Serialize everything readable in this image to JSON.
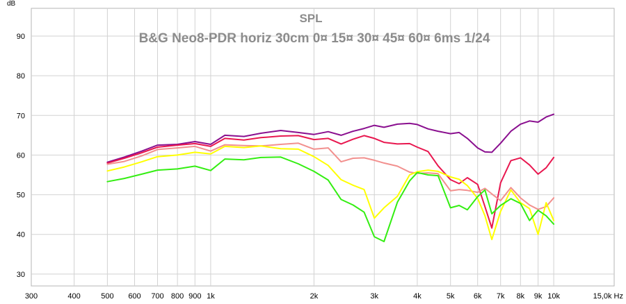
{
  "chart_data": {
    "type": "line",
    "title": "SPL",
    "subtitle": "B&G Neo8-PDR horiz 30cm 0¤ 15¤ 30¤ 45¤ 60¤ 6ms 1/24",
    "xlabel": "Hz",
    "ylabel": "dB",
    "x_scale": "log",
    "xlim": [
      300,
      15000
    ],
    "ylim": [
      27,
      97
    ],
    "grid": true,
    "x_ticks": [
      {
        "value": 300,
        "label": "300"
      },
      {
        "value": 400,
        "label": "400"
      },
      {
        "value": 500,
        "label": "500"
      },
      {
        "value": 600,
        "label": "600"
      },
      {
        "value": 700,
        "label": "700"
      },
      {
        "value": 800,
        "label": "800"
      },
      {
        "value": 900,
        "label": "900"
      },
      {
        "value": 1000,
        "label": "1k"
      },
      {
        "value": 2000,
        "label": "2k"
      },
      {
        "value": 3000,
        "label": "3k"
      },
      {
        "value": 4000,
        "label": "4k"
      },
      {
        "value": 5000,
        "label": "5k"
      },
      {
        "value": 6000,
        "label": "6k"
      },
      {
        "value": 7000,
        "label": "7k"
      },
      {
        "value": 8000,
        "label": "8k"
      },
      {
        "value": 9000,
        "label": "9k"
      },
      {
        "value": 10000,
        "label": "10k"
      },
      {
        "value": 15000,
        "label": "15,0k Hz"
      }
    ],
    "x_minor_gridlines": [
      5000,
      6000,
      7000,
      8000,
      9000,
      10000
    ],
    "y_ticks": [
      30,
      40,
      50,
      60,
      70,
      80,
      90
    ],
    "x": [
      500,
      560,
      630,
      700,
      800,
      900,
      1000,
      1100,
      1250,
      1400,
      1600,
      1800,
      2000,
      2200,
      2400,
      2600,
      2800,
      3000,
      3200,
      3500,
      3800,
      4000,
      4300,
      4600,
      5000,
      5300,
      5600,
      6000,
      6300,
      6600,
      7000,
      7500,
      8000,
      8500,
      9000,
      9500,
      10000
    ],
    "series": [
      {
        "color": "#8a0f8f",
        "values": [
          58.2,
          59.5,
          61.0,
          62.5,
          62.7,
          63.4,
          62.7,
          65.0,
          64.7,
          65.5,
          66.2,
          65.7,
          65.2,
          65.9,
          65.0,
          66.0,
          66.7,
          67.5,
          67.0,
          67.8,
          68.0,
          67.7,
          66.6,
          66.0,
          65.4,
          65.7,
          64.2,
          61.8,
          60.8,
          60.7,
          63.0,
          66.0,
          67.8,
          68.6,
          68.3,
          69.6,
          70.3
        ]
      },
      {
        "color": "#e8174f",
        "values": [
          58.0,
          59.2,
          60.6,
          62.0,
          62.5,
          62.9,
          62.2,
          64.2,
          63.8,
          64.4,
          64.8,
          64.9,
          63.9,
          64.2,
          62.8,
          64.0,
          64.9,
          64.2,
          63.2,
          62.8,
          62.9,
          62.0,
          60.9,
          57.3,
          53.8,
          52.8,
          54.3,
          52.6,
          47.0,
          41.6,
          53.0,
          58.6,
          59.3,
          57.5,
          55.2,
          56.8,
          59.4
        ]
      },
      {
        "color": "#f2908e",
        "values": [
          57.7,
          58.4,
          59.8,
          61.4,
          61.8,
          62.2,
          61.0,
          62.6,
          62.4,
          62.3,
          62.7,
          63.0,
          61.5,
          61.8,
          58.3,
          59.2,
          59.3,
          58.7,
          58.0,
          57.2,
          55.7,
          55.4,
          55.5,
          55.3,
          51.0,
          51.3,
          51.1,
          50.6,
          51.6,
          50.2,
          48.5,
          51.8,
          49.2,
          47.4,
          46.3,
          47.0,
          49.2
        ]
      },
      {
        "color": "#ffff00",
        "values": [
          56.0,
          57.0,
          58.3,
          59.6,
          60.0,
          60.7,
          60.3,
          62.2,
          61.9,
          62.3,
          61.6,
          61.5,
          59.6,
          57.4,
          53.8,
          52.4,
          51.3,
          44.1,
          46.7,
          49.6,
          55.0,
          55.8,
          56.2,
          55.9,
          54.5,
          53.9,
          52.3,
          49.1,
          44.7,
          38.7,
          45.8,
          51.2,
          48.0,
          46.5,
          40.0,
          48.0,
          43.5
        ]
      },
      {
        "color": "#33ee11",
        "values": [
          53.3,
          54.1,
          55.2,
          56.2,
          56.5,
          57.2,
          56.1,
          59.0,
          58.8,
          59.4,
          59.5,
          57.8,
          55.9,
          53.7,
          48.8,
          47.4,
          45.6,
          39.4,
          38.2,
          48.1,
          53.5,
          55.6,
          55.0,
          54.8,
          46.7,
          47.3,
          46.2,
          49.5,
          51.2,
          45.2,
          47.3,
          49.0,
          47.8,
          43.5,
          46.1,
          44.7,
          42.6
        ]
      }
    ]
  }
}
